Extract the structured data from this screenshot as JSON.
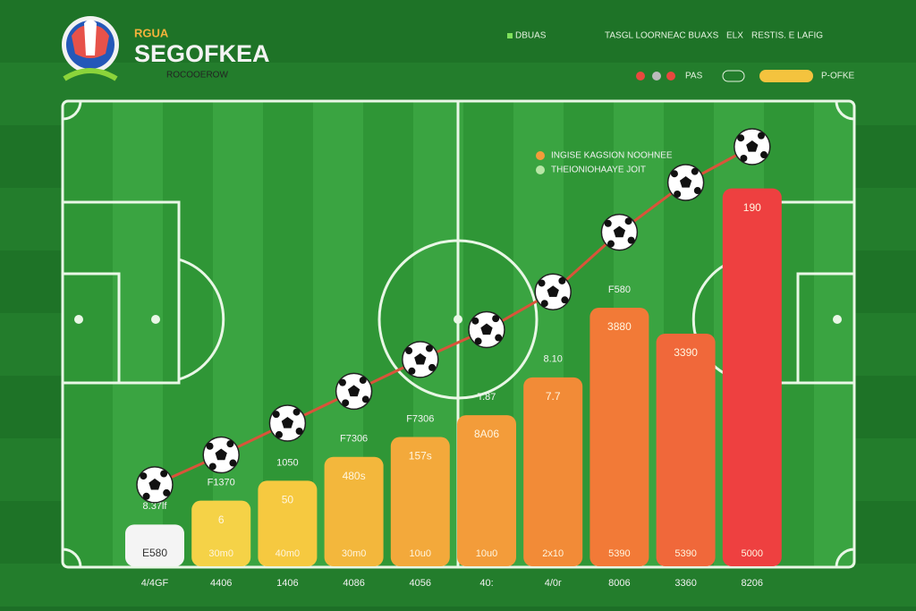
{
  "header": {
    "badge": "RGUA",
    "title": "SEGOFKEA",
    "subtitle": "ROCOOEROW",
    "nav": [
      "DBUAS",
      "TASGL LOORNEAC BUAXS",
      "ELX",
      "RESTIS. E LAFIG"
    ],
    "controls": [
      "PAS",
      "P-OFKE"
    ]
  },
  "chart_data": {
    "type": "bar",
    "categories": [
      "4/4GF",
      "4406",
      "1406",
      "4086",
      "4056",
      "40:",
      "4/0r",
      "8006",
      "3360",
      "8206"
    ],
    "series": [
      {
        "name": "INGISE KAGSION NOOHNEE",
        "type": "bar",
        "color": "#f39c3a",
        "colors": [
          "#f4f4f4",
          "#f5d247",
          "#f6c940",
          "#f3b73c",
          "#f3a93b",
          "#f39c3a",
          "#f28b37",
          "#f27a37",
          "#f0683a",
          "#ee4040"
        ],
        "values": [
          21,
          33,
          43,
          55,
          65,
          76,
          95,
          130,
          117,
          190
        ]
      },
      {
        "name": "THEIONIOHAAYE JOIT",
        "type": "line",
        "color": "#d9543a",
        "values": [
          41,
          56,
          72,
          88,
          104,
          119,
          138,
          168,
          193,
          211
        ]
      }
    ],
    "ylim": [
      0,
      220
    ],
    "top_labels": [
      "8.37lf",
      "F1370",
      "1050",
      "F7306",
      "F7306",
      "T.87",
      "8.10",
      "F580",
      "",
      ""
    ],
    "inner_labels": [
      "E580",
      "6",
      "50",
      "480s",
      "157s",
      "8A06",
      "7.7",
      "3880",
      "3390",
      "190"
    ],
    "base_labels": [
      "",
      "30m0",
      "40m0",
      "30m0",
      "10u0",
      "10u0",
      "2x10",
      "5390",
      "5390",
      "5000"
    ]
  }
}
